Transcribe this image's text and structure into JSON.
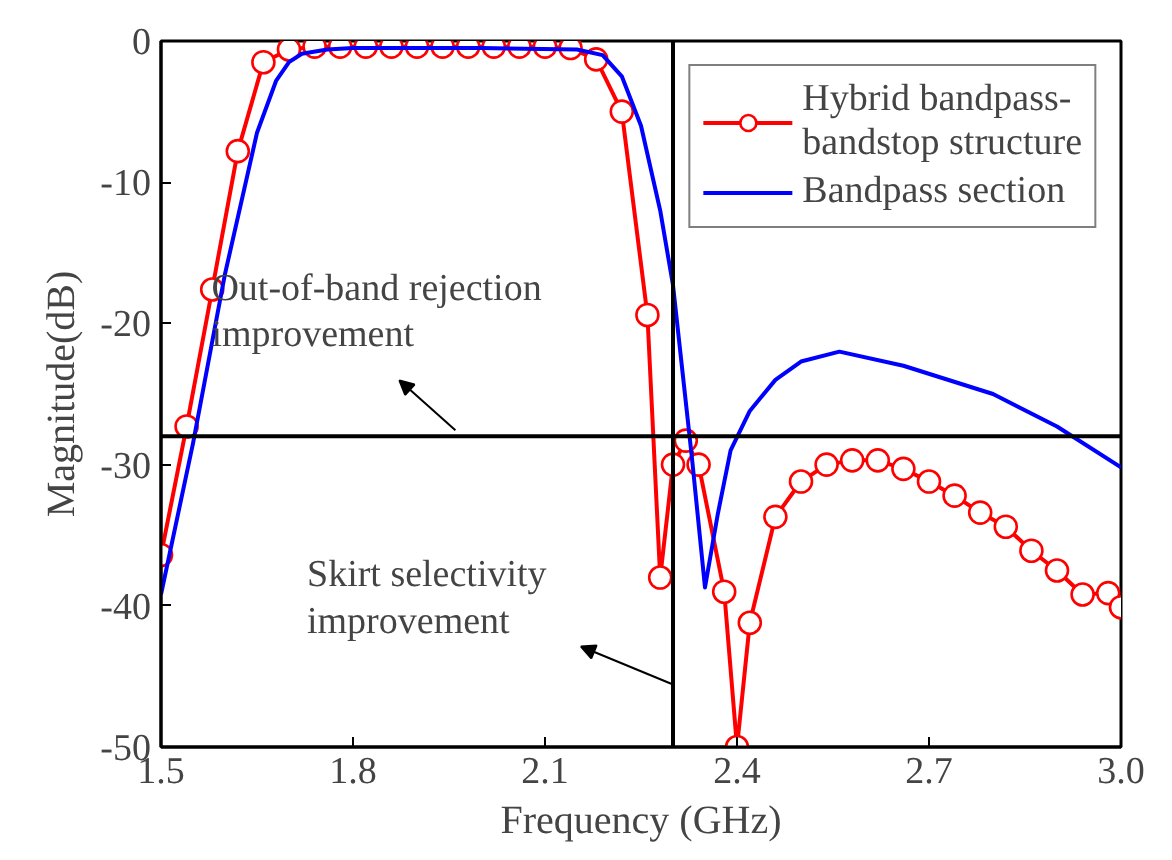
{
  "chart_data": {
    "type": "line",
    "xlabel": "Frequency (GHz)",
    "ylabel": "Magnitude(dB)",
    "xlim": [
      1.5,
      3.0
    ],
    "xticks": [
      1.5,
      1.8,
      2.1,
      2.4,
      2.7,
      {
        "value": 3,
        "label": "3.0"
      }
    ],
    "ylim": [
      -50,
      0
    ],
    "yticks": [
      -50,
      -40,
      -30,
      -20,
      -10,
      0
    ],
    "grid": false,
    "legend": "top right",
    "series": [
      {
        "name": "Hybrid bandpass-bandstop structure",
        "color": "#ff0000",
        "marker": "circle",
        "x": [
          1.5,
          1.54,
          1.58,
          1.62,
          1.66,
          1.7,
          1.74,
          1.78,
          1.82,
          1.86,
          1.9,
          1.94,
          1.98,
          2.02,
          2.06,
          2.1,
          2.14,
          2.18,
          2.22,
          2.26,
          2.28,
          2.3,
          2.32,
          2.34,
          2.38,
          2.4,
          2.42,
          2.46,
          2.5,
          2.54,
          2.58,
          2.62,
          2.66,
          2.7,
          2.74,
          2.78,
          2.82,
          2.86,
          2.9,
          2.94,
          2.98,
          3.0
        ],
        "values": [
          -36.4,
          -27.3,
          -17.6,
          -7.8,
          -1.5,
          -0.6,
          -0.4,
          -0.4,
          -0.4,
          -0.4,
          -0.4,
          -0.4,
          -0.4,
          -0.4,
          -0.4,
          -0.4,
          -0.5,
          -1.3,
          -5,
          -19.4,
          -38,
          -30,
          -28.3,
          -30,
          -39,
          -50,
          -41.2,
          -33.7,
          -31.2,
          -30,
          -29.7,
          -29.7,
          -30.3,
          -31.2,
          -32.2,
          -33.4,
          -34.4,
          -36.1,
          -37.5,
          -39.2,
          -39.1,
          -40.1
        ]
      },
      {
        "name": "Bandpass section",
        "color": "#0000ff",
        "marker": "none",
        "x": [
          1.5,
          1.55,
          1.6,
          1.65,
          1.68,
          1.7,
          1.72,
          1.76,
          1.8,
          2.0,
          2.15,
          2.19,
          2.22,
          2.25,
          2.28,
          2.3,
          2.33,
          2.35,
          2.37,
          2.39,
          2.42,
          2.46,
          2.5,
          2.56,
          2.66,
          2.8,
          2.9,
          3.0
        ],
        "values": [
          -39.2,
          -28.5,
          -16.5,
          -6.5,
          -2.8,
          -1.5,
          -0.9,
          -0.6,
          -0.5,
          -0.5,
          -0.6,
          -1.0,
          -2.5,
          -6,
          -12,
          -17.3,
          -29.7,
          -38.7,
          -33.5,
          -29,
          -26.2,
          -24,
          -22.7,
          -22,
          -23,
          -25,
          -27.3,
          -30.2
        ]
      }
    ],
    "ref_lines": [
      {
        "axis": "y",
        "value": -28,
        "color": "#000000"
      },
      {
        "axis": "x",
        "value": 2.3,
        "color": "#000000"
      }
    ],
    "annotations": [
      {
        "text": "Out-of-band rejection improvement",
        "x": 1.96,
        "y": -28
      },
      {
        "text": "Skirt selectivity improvement",
        "x": 2.3,
        "y": -46
      }
    ]
  }
}
